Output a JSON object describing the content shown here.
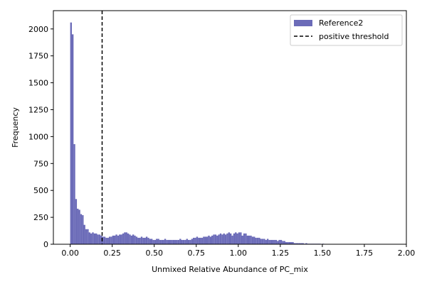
{
  "chart_data": {
    "type": "bar",
    "xlabel": "Unmixed Relative Abundance of PC_mix",
    "ylabel": "Frequency",
    "xlim": [
      -0.1,
      2.0
    ],
    "ylim": [
      0,
      2170
    ],
    "grid": false,
    "legend_position": "top-right",
    "x_ticks": [
      0.0,
      0.25,
      0.5,
      0.75,
      1.0,
      1.25,
      1.5,
      1.75,
      2.0
    ],
    "x_tick_labels": [
      "0.00",
      "0.25",
      "0.50",
      "0.75",
      "1.00",
      "1.25",
      "1.50",
      "1.75",
      "2.00"
    ],
    "y_ticks": [
      0,
      250,
      500,
      750,
      1000,
      1250,
      1500,
      1750,
      2000
    ],
    "y_tick_labels": [
      "0",
      "250",
      "500",
      "750",
      "1000",
      "1250",
      "1500",
      "1750",
      "2000"
    ],
    "bin_start": 0.0,
    "bin_width": 0.01,
    "series": [
      {
        "name": "Reference2",
        "color": "#6b6bb8",
        "values": [
          2060,
          1950,
          930,
          420,
          330,
          320,
          280,
          270,
          180,
          140,
          140,
          110,
          100,
          110,
          100,
          100,
          90,
          90,
          80,
          70,
          70,
          60,
          60,
          70,
          70,
          80,
          80,
          90,
          80,
          90,
          90,
          100,
          110,
          110,
          100,
          90,
          80,
          90,
          80,
          70,
          60,
          60,
          70,
          60,
          60,
          70,
          60,
          50,
          50,
          40,
          40,
          50,
          50,
          40,
          40,
          40,
          50,
          40,
          40,
          40,
          40,
          40,
          40,
          40,
          40,
          50,
          40,
          40,
          40,
          50,
          40,
          40,
          50,
          60,
          60,
          70,
          60,
          60,
          60,
          70,
          70,
          70,
          80,
          70,
          80,
          90,
          90,
          80,
          90,
          100,
          90,
          100,
          90,
          100,
          110,
          100,
          80,
          100,
          110,
          100,
          110,
          110,
          80,
          100,
          100,
          80,
          80,
          80,
          70,
          70,
          60,
          60,
          60,
          50,
          50,
          50,
          40,
          50,
          40,
          40,
          40,
          40,
          40,
          30,
          40,
          40,
          30,
          30,
          20,
          20,
          20,
          20,
          20,
          10,
          10,
          10,
          10,
          10,
          10,
          5,
          10,
          5,
          5,
          5,
          5,
          5,
          5,
          5,
          5,
          3,
          5,
          3,
          3,
          3,
          3,
          2,
          2,
          2,
          2,
          2,
          1,
          2,
          1,
          1,
          1,
          1,
          1,
          1,
          1,
          1
        ]
      }
    ],
    "threshold": {
      "name": "positive threshold",
      "x": 0.19,
      "color": "#000000",
      "style": "dashed"
    }
  }
}
